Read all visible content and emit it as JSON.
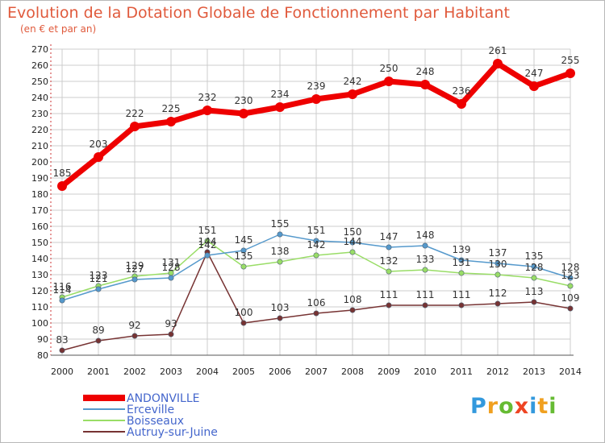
{
  "title": "Evolution de la Dotation Globale de Fonctionnement par Habitant",
  "subtitle": "(en € et par an)",
  "logo": [
    "P",
    "r",
    "o",
    "x",
    "i",
    "t",
    "i"
  ],
  "colors": {
    "title": "#e05a3c",
    "grid": "#cccccc",
    "axis": "#cc3333",
    "logo": [
      "#3399dd",
      "#f0a020",
      "#66bb33",
      "#ee4422",
      "#3399dd",
      "#f0a020",
      "#66bb33"
    ]
  },
  "chart_data": {
    "type": "line",
    "title": "Evolution de la Dotation Globale de Fonctionnement par Habitant",
    "subtitle": "(en € et par an)",
    "xlabel": "",
    "ylabel": "",
    "ylim": [
      80,
      270
    ],
    "yticks": [
      80,
      90,
      100,
      110,
      120,
      130,
      140,
      150,
      160,
      170,
      180,
      190,
      200,
      210,
      220,
      230,
      240,
      250,
      260,
      270
    ],
    "categories": [
      "2000",
      "2001",
      "2002",
      "2003",
      "2004",
      "2005",
      "2006",
      "2007",
      "2008",
      "2009",
      "2010",
      "2011",
      "2012",
      "2013",
      "2014"
    ],
    "grid": true,
    "legend": "bottom-left",
    "series": [
      {
        "name": "ANDONVILLE",
        "color": "#ee0000",
        "values": [
          185,
          203,
          222,
          225,
          232,
          230,
          234,
          239,
          242,
          250,
          248,
          236,
          261,
          247,
          255
        ]
      },
      {
        "name": "Erceville",
        "color": "#5599cc",
        "values": [
          114,
          121,
          127,
          128,
          142,
          145,
          155,
          151,
          150,
          147,
          148,
          139,
          137,
          135,
          128
        ]
      },
      {
        "name": "Boisseaux",
        "color": "#99dd66",
        "values": [
          116,
          123,
          129,
          131,
          151,
          135,
          138,
          142,
          144,
          132,
          133,
          131,
          130,
          128,
          123
        ]
      },
      {
        "name": "Autruy-sur-Juine",
        "color": "#773333",
        "values": [
          83,
          89,
          92,
          93,
          144,
          100,
          103,
          106,
          108,
          111,
          111,
          111,
          112,
          113,
          109
        ]
      }
    ]
  }
}
